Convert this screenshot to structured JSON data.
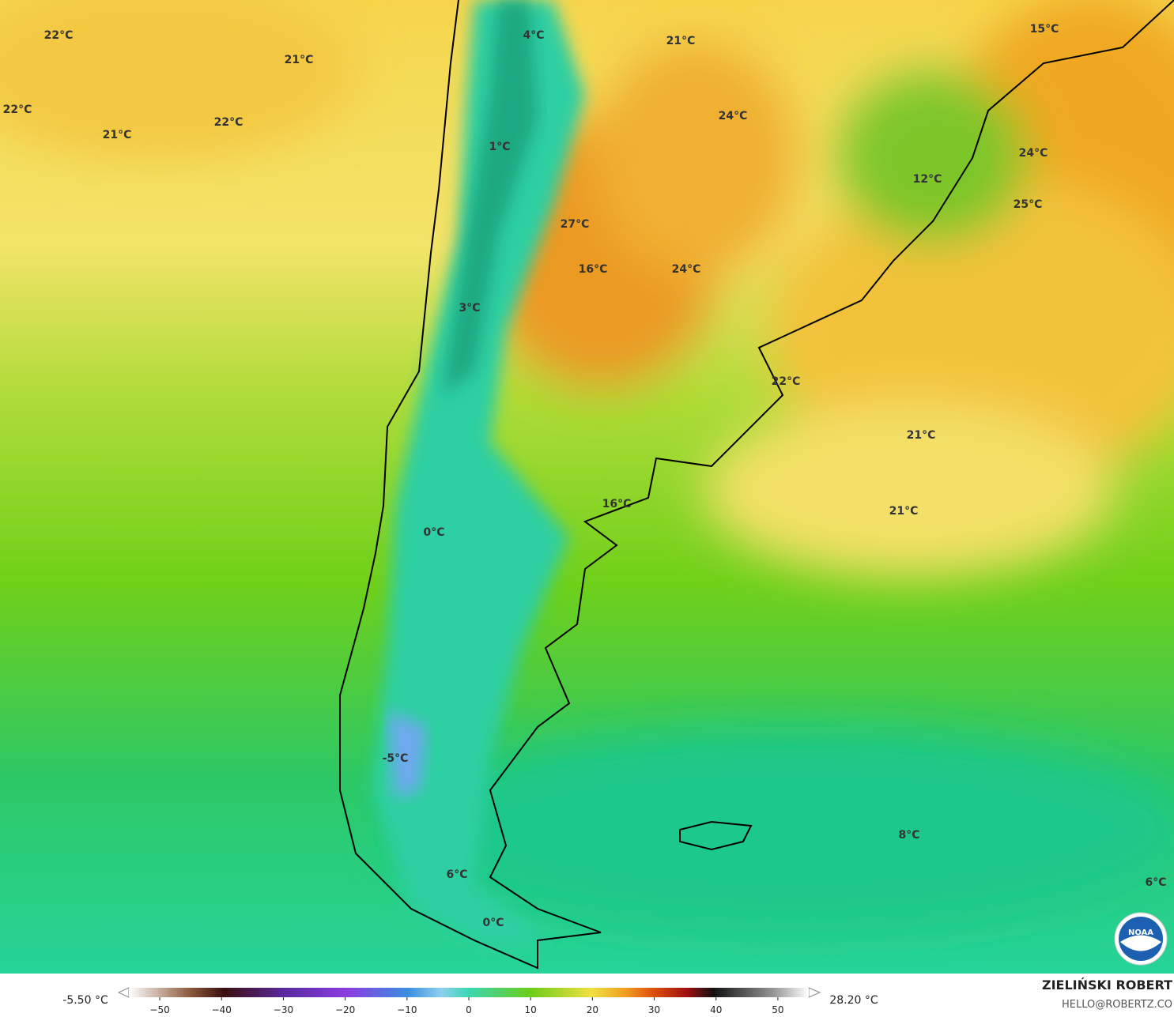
{
  "map_labels": [
    "22°C",
    "21°C",
    "22°C",
    "21°C",
    "22°C",
    "4°C",
    "21°C",
    "15°C",
    "24°C",
    "1°C",
    "24°C",
    "12°C",
    "25°C",
    "27°C",
    "16°C",
    "24°C",
    "3°C",
    "22°C",
    "21°C",
    "16°C",
    "21°C",
    "0°C",
    "-5°C",
    "8°C",
    "6°C",
    "6°C",
    "0°C"
  ],
  "colorbar": {
    "min_label": "-5.50 °C",
    "max_label": "28.20 °C",
    "lim": [
      -55,
      55
    ],
    "ticks": [
      {
        "value": -50,
        "label": "−50"
      },
      {
        "value": -40,
        "label": "−40"
      },
      {
        "value": -30,
        "label": "−30"
      },
      {
        "value": -20,
        "label": "−20"
      },
      {
        "value": -10,
        "label": "−10"
      },
      0,
      10,
      20,
      30,
      40,
      50
    ]
  },
  "credit": {
    "author": "ZIELIŃSKI ROBERT",
    "email": "HELLO@ROBERTZ.CO"
  }
}
